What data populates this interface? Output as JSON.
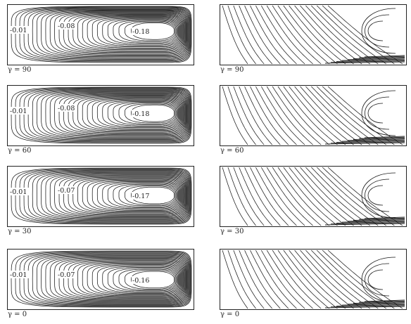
{
  "rows": [
    {
      "caption_left": "γ = 90",
      "caption_right": "γ = 90",
      "labels": {
        "outer": "-0.01",
        "mid": "-0.08",
        "core": "-0.18"
      }
    },
    {
      "caption_left": "γ = 60",
      "caption_right": "γ = 60",
      "labels": {
        "outer": "-0.01",
        "mid": "-0.08",
        "core": "-0.18"
      }
    },
    {
      "caption_left": "γ = 30",
      "caption_right": "γ = 30",
      "labels": {
        "outer": "-0.01",
        "mid": "-0.07",
        "core": "-0.17"
      }
    },
    {
      "caption_left": "γ = 0",
      "caption_right": "γ = 0",
      "labels": {
        "outer": "-0.01",
        "mid": "-0.07",
        "core": "-0.16"
      }
    }
  ],
  "colors": {
    "line": "#1a1a1a",
    "frame": "#222222"
  }
}
